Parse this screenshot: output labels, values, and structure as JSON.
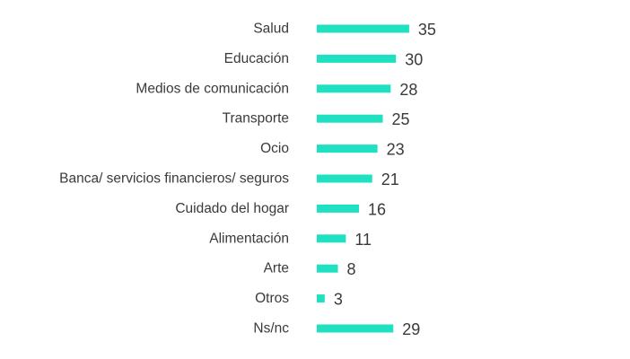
{
  "chart_data": {
    "type": "bar",
    "orientation": "horizontal",
    "title": "",
    "xlabel": "",
    "ylabel": "",
    "grid": false,
    "legend": "none",
    "xlim": [
      0,
      35
    ],
    "categories": [
      "Salud",
      "Educación",
      "Medios de comunicación",
      "Transporte",
      "Ocio",
      "Banca/ servicios financieros/ seguros",
      "Cuidado del hogar",
      "Alimentación",
      "Arte",
      "Otros",
      "Ns/nc"
    ],
    "values": [
      35,
      30,
      28,
      25,
      23,
      21,
      16,
      11,
      8,
      3,
      29
    ],
    "bar_color": "#1fe0c0",
    "text_color": "#3a3a3a"
  }
}
